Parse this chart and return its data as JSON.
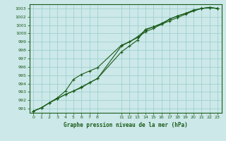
{
  "title": "Graphe pression niveau de la mer (hPa)",
  "bg_color": "#cce8e8",
  "grid_color": "#99cccc",
  "line_color": "#1a5c1a",
  "xlim": [
    -0.5,
    23.5
  ],
  "ylim": [
    990.5,
    1003.5
  ],
  "yticks": [
    991,
    992,
    993,
    994,
    995,
    996,
    997,
    998,
    999,
    1000,
    1001,
    1002,
    1003
  ],
  "xticks": [
    0,
    1,
    2,
    3,
    4,
    5,
    6,
    7,
    8,
    11,
    12,
    13,
    14,
    15,
    16,
    17,
    18,
    19,
    20,
    21,
    22,
    23
  ],
  "xlabels": [
    "0",
    "1",
    "2",
    "3",
    "4",
    "5",
    "6",
    "7",
    "8",
    "11",
    "12",
    "13",
    "14",
    "15",
    "16",
    "17",
    "18",
    "19",
    "20",
    "21",
    "22",
    "23"
  ],
  "line1_x": [
    0,
    1,
    2,
    3,
    4,
    5,
    6,
    7,
    8,
    11,
    12,
    13,
    14,
    15,
    16,
    17,
    18,
    19,
    20,
    21,
    22,
    23
  ],
  "line1_y": [
    990.7,
    991.1,
    991.7,
    992.2,
    992.7,
    993.1,
    993.6,
    994.1,
    994.6,
    998.5,
    999.0,
    999.6,
    1000.4,
    1000.8,
    1001.1,
    1001.7,
    1002.1,
    1002.4,
    1002.7,
    1003.0,
    1003.1,
    1003.0
  ],
  "line2_x": [
    0,
    1,
    2,
    3,
    4,
    5,
    6,
    7,
    8,
    11,
    12,
    13,
    14,
    15,
    16,
    17,
    18,
    19,
    20,
    21,
    22,
    23
  ],
  "line2_y": [
    990.7,
    991.1,
    991.7,
    992.3,
    993.1,
    994.5,
    995.1,
    995.5,
    995.9,
    998.6,
    999.0,
    999.5,
    1000.2,
    1000.6,
    1001.1,
    1001.5,
    1001.9,
    1002.3,
    1002.7,
    1003.0,
    1003.1,
    1003.0
  ],
  "line3_x": [
    0,
    1,
    2,
    3,
    4,
    5,
    6,
    7,
    8,
    11,
    12,
    13,
    14,
    15,
    16,
    17,
    18,
    19,
    20,
    21,
    22,
    23
  ],
  "line3_y": [
    990.7,
    991.1,
    991.7,
    992.2,
    992.7,
    993.1,
    993.5,
    994.1,
    994.6,
    997.8,
    998.5,
    999.2,
    1000.5,
    1000.8,
    1001.2,
    1001.7,
    1002.1,
    1002.4,
    1002.8,
    1003.0,
    1003.1,
    1003.0
  ]
}
